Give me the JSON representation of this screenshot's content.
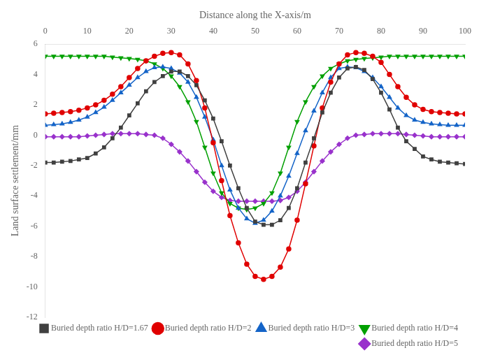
{
  "chart_data": {
    "type": "line",
    "xlabel": "Distance along the X-axis/m",
    "ylabel": "Land surface settlement/mm",
    "xlim": [
      0,
      100
    ],
    "ylim": [
      -12,
      6
    ],
    "xticks": [
      0,
      10,
      20,
      30,
      40,
      50,
      60,
      70,
      80,
      90,
      100
    ],
    "yticks": [
      -12,
      -10,
      -8,
      -6,
      -4,
      -2,
      0,
      2,
      4,
      6
    ],
    "grid": false,
    "legend": "lower right",
    "x": [
      0,
      2,
      4,
      6,
      8,
      10,
      12,
      14,
      16,
      18,
      20,
      22,
      24,
      26,
      28,
      30,
      32,
      34,
      36,
      38,
      40,
      42,
      44,
      46,
      48,
      50,
      52,
      54,
      56,
      58,
      60,
      62,
      64,
      66,
      68,
      70,
      72,
      74,
      76,
      78,
      80,
      82,
      84,
      86,
      88,
      90,
      92,
      94,
      96,
      98,
      100
    ],
    "series": [
      {
        "name": "Buried depth ratio H/D=1.67",
        "color": "#404040",
        "marker": "square",
        "values": [
          -1.8,
          -1.8,
          -1.75,
          -1.7,
          -1.6,
          -1.5,
          -1.2,
          -0.8,
          -0.2,
          0.5,
          1.3,
          2.1,
          2.9,
          3.5,
          3.9,
          4.2,
          4.2,
          3.9,
          3.3,
          2.3,
          1.1,
          -0.4,
          -2.0,
          -3.5,
          -4.8,
          -5.7,
          -5.9,
          -5.9,
          -5.6,
          -4.8,
          -3.5,
          -1.8,
          -0.2,
          1.5,
          2.8,
          3.8,
          4.4,
          4.5,
          4.3,
          3.7,
          2.8,
          1.7,
          0.5,
          -0.4,
          -0.9,
          -1.4,
          -1.6,
          -1.75,
          -1.8,
          -1.85,
          -1.9
        ]
      },
      {
        "name": "Buried depth ratio H/D=2",
        "color": "#e00000",
        "marker": "circle",
        "values": [
          1.4,
          1.45,
          1.5,
          1.55,
          1.65,
          1.8,
          2.0,
          2.3,
          2.7,
          3.2,
          3.8,
          4.4,
          4.9,
          5.2,
          5.4,
          5.45,
          5.3,
          4.7,
          3.6,
          1.8,
          -0.5,
          -3.0,
          -5.3,
          -7.1,
          -8.5,
          -9.3,
          -9.5,
          -9.3,
          -8.7,
          -7.5,
          -5.6,
          -3.2,
          -0.7,
          1.8,
          3.5,
          4.7,
          5.3,
          5.45,
          5.4,
          5.2,
          4.8,
          4.0,
          3.2,
          2.5,
          2.0,
          1.7,
          1.55,
          1.5,
          1.45,
          1.4,
          1.4
        ]
      },
      {
        "name": "Buried depth ratio H/D=3",
        "color": "#1464c8",
        "marker": "triangle-up",
        "values": [
          0.65,
          0.7,
          0.75,
          0.85,
          1.0,
          1.2,
          1.5,
          1.85,
          2.3,
          2.8,
          3.3,
          3.8,
          4.2,
          4.45,
          4.5,
          4.4,
          4.1,
          3.5,
          2.5,
          1.2,
          -0.3,
          -2.0,
          -3.6,
          -4.8,
          -5.5,
          -5.8,
          -5.6,
          -5.0,
          -4.0,
          -2.7,
          -1.2,
          0.3,
          1.6,
          2.8,
          3.8,
          4.4,
          4.5,
          4.45,
          4.2,
          3.8,
          3.2,
          2.5,
          1.8,
          1.3,
          1.0,
          0.85,
          0.75,
          0.7,
          0.65,
          0.65,
          0.65
        ]
      },
      {
        "name": "Buried depth ratio H/D=4",
        "color": "#00a000",
        "marker": "triangle-down",
        "values": [
          5.2,
          5.2,
          5.2,
          5.2,
          5.2,
          5.2,
          5.2,
          5.2,
          5.15,
          5.1,
          5.05,
          5.0,
          4.9,
          4.7,
          4.4,
          3.9,
          3.2,
          2.2,
          0.9,
          -0.8,
          -2.5,
          -3.8,
          -4.5,
          -4.8,
          -4.9,
          -4.8,
          -4.5,
          -3.8,
          -2.5,
          -0.8,
          0.9,
          2.2,
          3.2,
          3.9,
          4.4,
          4.7,
          4.9,
          5.0,
          5.05,
          5.1,
          5.15,
          5.2,
          5.2,
          5.2,
          5.2,
          5.2,
          5.2,
          5.2,
          5.2,
          5.2,
          5.2
        ]
      },
      {
        "name": "Buried depth ratio H/D=5",
        "color": "#9932cc",
        "marker": "diamond",
        "values": [
          -0.1,
          -0.1,
          -0.1,
          -0.1,
          -0.1,
          -0.05,
          0.0,
          0.05,
          0.1,
          0.1,
          0.1,
          0.1,
          0.05,
          0.0,
          -0.2,
          -0.6,
          -1.1,
          -1.7,
          -2.4,
          -3.1,
          -3.7,
          -4.1,
          -4.3,
          -4.35,
          -4.35,
          -4.35,
          -4.35,
          -4.35,
          -4.3,
          -4.1,
          -3.7,
          -3.1,
          -2.4,
          -1.7,
          -1.1,
          -0.6,
          -0.2,
          0.0,
          0.05,
          0.1,
          0.1,
          0.1,
          0.1,
          0.05,
          0.0,
          -0.05,
          -0.1,
          -0.1,
          -0.1,
          -0.1,
          -0.1
        ]
      }
    ]
  }
}
